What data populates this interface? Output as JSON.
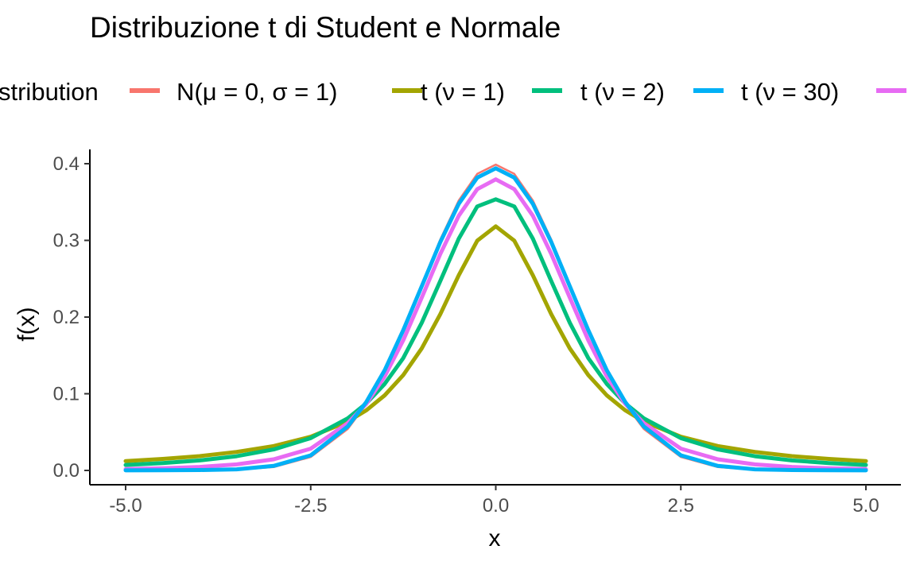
{
  "chart_data": {
    "type": "line",
    "title": "Distribuzione t di Student e Normale",
    "xlabel": "x",
    "ylabel": "f(x)",
    "xlim": [
      -5,
      5
    ],
    "ylim": [
      0,
      0.4
    ],
    "x_ticks": [
      -5.0,
      -2.5,
      0.0,
      2.5,
      5.0
    ],
    "x_tick_labels": [
      "-5.0",
      "-2.5",
      "0.0",
      "2.5",
      "5.0"
    ],
    "y_ticks": [
      0.0,
      0.1,
      0.2,
      0.3,
      0.4
    ],
    "y_tick_labels": [
      "0.0",
      "0.1",
      "0.2",
      "0.3",
      "0.4"
    ],
    "grid": false,
    "legend": {
      "title": "stribution",
      "position": "top"
    },
    "x": [
      -5.0,
      -4.5,
      -4.0,
      -3.5,
      -3.0,
      -2.5,
      -2.0,
      -1.75,
      -1.5,
      -1.25,
      -1.0,
      -0.75,
      -0.5,
      -0.25,
      0.0,
      0.25,
      0.5,
      0.75,
      1.0,
      1.25,
      1.5,
      1.75,
      2.0,
      2.5,
      3.0,
      3.5,
      4.0,
      4.5,
      5.0
    ],
    "series": [
      {
        "name": "N(μ = 0, σ = 1)",
        "color": "#F8766D",
        "values": [
          0.0,
          0.0,
          0.0001,
          0.0009,
          0.0044,
          0.0175,
          0.054,
          0.0863,
          0.1295,
          0.1826,
          0.242,
          0.3011,
          0.3521,
          0.3867,
          0.3989,
          0.3867,
          0.3521,
          0.3011,
          0.242,
          0.1826,
          0.1295,
          0.0863,
          0.054,
          0.0175,
          0.0044,
          0.0009,
          0.0001,
          0.0,
          0.0
        ]
      },
      {
        "name": "t (ν = 1)",
        "color": "#A3A500",
        "values": [
          0.0122,
          0.015,
          0.0187,
          0.0241,
          0.0318,
          0.0439,
          0.0637,
          0.0783,
          0.0979,
          0.1242,
          0.1592,
          0.2037,
          0.2546,
          0.2996,
          0.3183,
          0.2996,
          0.2546,
          0.2037,
          0.1592,
          0.1242,
          0.0979,
          0.0783,
          0.0637,
          0.0439,
          0.0318,
          0.0241,
          0.0187,
          0.015,
          0.0122
        ]
      },
      {
        "name": "t (ν = 2)",
        "color": "#00BF7D",
        "values": [
          0.0071,
          0.0096,
          0.0131,
          0.0185,
          0.0274,
          0.0422,
          0.068,
          0.0874,
          0.1129,
          0.1464,
          0.1925,
          0.2469,
          0.3024,
          0.3442,
          0.3536,
          0.3442,
          0.3024,
          0.2469,
          0.1925,
          0.1464,
          0.1129,
          0.0874,
          0.068,
          0.0422,
          0.0274,
          0.0185,
          0.0131,
          0.0096,
          0.0071
        ]
      },
      {
        "name": "t (ν = 30)",
        "color": "#00B0F6",
        "values": [
          0.0001,
          0.0002,
          0.0005,
          0.0015,
          0.0059,
          0.0197,
          0.0573,
          0.0891,
          0.1307,
          0.1828,
          0.2402,
          0.2977,
          0.3478,
          0.3819,
          0.394,
          0.3819,
          0.3478,
          0.2977,
          0.2402,
          0.1828,
          0.1307,
          0.0891,
          0.0573,
          0.0197,
          0.0059,
          0.0015,
          0.0005,
          0.0002,
          0.0001
        ]
      },
      {
        "name": "",
        "color": "#E76BF3",
        "values": [
          0.0018,
          0.0028,
          0.0046,
          0.0079,
          0.0145,
          0.0284,
          0.0617,
          0.0867,
          0.1227,
          0.1697,
          0.2254,
          0.2822,
          0.3322,
          0.3667,
          0.3796,
          0.3667,
          0.3322,
          0.2822,
          0.2254,
          0.1697,
          0.1227,
          0.0867,
          0.0617,
          0.0284,
          0.0145,
          0.0079,
          0.0046,
          0.0028,
          0.0018
        ]
      }
    ]
  }
}
